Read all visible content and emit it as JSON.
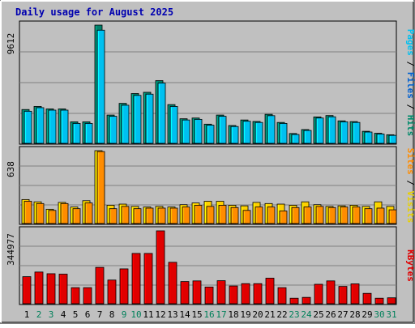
{
  "chart_data": {
    "type": "bar",
    "title": "Daily usage for August 2025",
    "categories": [
      "1",
      "2",
      "3",
      "4",
      "5",
      "6",
      "7",
      "8",
      "9",
      "10",
      "11",
      "12",
      "13",
      "14",
      "15",
      "16",
      "17",
      "18",
      "19",
      "20",
      "21",
      "22",
      "23",
      "24",
      "25",
      "26",
      "27",
      "28",
      "29",
      "30",
      "31"
    ],
    "weekend_days": [
      "2",
      "3",
      "9",
      "10",
      "16",
      "17",
      "23",
      "24",
      "30",
      "31"
    ],
    "panels": [
      {
        "id": "top",
        "max_label": "9612",
        "ylim": [
          0,
          9612
        ],
        "legend": [
          {
            "text": "Pages",
            "color": "#00c0f0"
          },
          {
            "text": " / ",
            "color": "#000000"
          },
          {
            "text": "Files",
            "color": "#0060d0"
          },
          {
            "text": " / ",
            "color": "#000000"
          },
          {
            "text": "Hits",
            "color": "#008a6a"
          }
        ],
        "series": [
          {
            "name": "Hits",
            "color": "#00806a",
            "values": [
              2750,
              3000,
              2800,
              2800,
              1750,
              1750,
              9612,
              2300,
              3250,
              4050,
              4150,
              5100,
              3150,
              2000,
              2060,
              1560,
              2300,
              1450,
              1900,
              1780,
              2360,
              1700,
              800,
              1120,
              2150,
              2260,
              1830,
              1770,
              980,
              820,
              700
            ]
          },
          {
            "name": "Pages",
            "color": "#00c0f0",
            "values": [
              2610,
              2900,
              2700,
              2700,
              1620,
              1620,
              9200,
              2200,
              3100,
              3900,
              4000,
              4900,
              3000,
              1900,
              1950,
              1480,
              2200,
              1370,
              1800,
              1700,
              2250,
              1620,
              720,
              1050,
              2060,
              2160,
              1750,
              1700,
              920,
              760,
              650
            ]
          }
        ]
      },
      {
        "id": "middle",
        "max_label": "638",
        "ylim": [
          0,
          638
        ],
        "legend": [
          {
            "text": "Sites",
            "color": "#ff8c00"
          },
          {
            "text": " / ",
            "color": "#000000"
          },
          {
            "text": "Visits",
            "color": "#e8d000"
          }
        ],
        "series": [
          {
            "name": "Visits",
            "color": "#ffd000",
            "values": [
              210,
              190,
              125,
              185,
              145,
              200,
              638,
              160,
              170,
              150,
              145,
              150,
              145,
              165,
              180,
              195,
              195,
              160,
              155,
              185,
              175,
              170,
              160,
              190,
              165,
              150,
              155,
              160,
              150,
              190,
              150
            ]
          },
          {
            "name": "Sites",
            "color": "#ff8c00",
            "values": [
              195,
              175,
              115,
              175,
              130,
              180,
              630,
              130,
              150,
              130,
              135,
              135,
              135,
              145,
              160,
              150,
              160,
              140,
              115,
              145,
              145,
              110,
              140,
              145,
              150,
              140,
              145,
              145,
              130,
              135,
              120
            ]
          }
        ]
      },
      {
        "id": "bottom",
        "max_label": "344977",
        "ylim": [
          0,
          344977
        ],
        "legend": [
          {
            "text": "KBytes",
            "color": "#e00000"
          }
        ],
        "series": [
          {
            "name": "KBytes",
            "color": "#e00000",
            "values": [
              128000,
              150000,
              142000,
              140000,
              76000,
              76000,
              172000,
              112000,
              165000,
              238000,
              238000,
              344977,
              196000,
              105000,
              108000,
              79000,
              109000,
              84000,
              95000,
              95000,
              121000,
              76000,
              26000,
              30000,
              92000,
              108000,
              82000,
              94000,
              49000,
              26000,
              28000
            ]
          }
        ]
      }
    ]
  },
  "colors": {
    "background": "#c0c0c0",
    "axis_day_color": "#000000",
    "weekend_day_color": "#00805a",
    "title_color": "#0000b0"
  }
}
